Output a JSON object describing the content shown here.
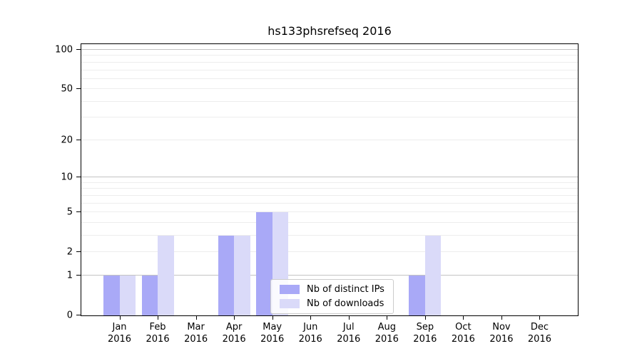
{
  "chart_data": {
    "type": "bar",
    "title": "hs133phsrefseq 2016",
    "x_year": "2016",
    "categories": [
      "Jan",
      "Feb",
      "Mar",
      "Apr",
      "May",
      "Jun",
      "Jul",
      "Aug",
      "Sep",
      "Oct",
      "Nov",
      "Dec"
    ],
    "series": [
      {
        "name": "Nb of distinct IPs",
        "color": "#a9a9f7",
        "values": [
          1,
          1,
          0,
          3,
          5,
          0,
          0,
          0,
          1,
          0,
          0,
          0
        ]
      },
      {
        "name": "Nb of downloads",
        "color": "#dadaf9",
        "values": [
          1,
          3,
          0,
          3,
          5,
          0,
          0,
          0,
          3,
          0,
          0,
          0
        ]
      }
    ],
    "y_axis": {
      "scale": "log10(value+1)",
      "tick_values": [
        100,
        50,
        20,
        10,
        5,
        2,
        1,
        0
      ],
      "major_gridlines": [
        1,
        10,
        100
      ],
      "minor_gridlines": [
        2,
        3,
        4,
        5,
        6,
        7,
        8,
        9,
        20,
        30,
        40,
        50,
        60,
        70,
        80,
        90
      ],
      "range_top": 112
    },
    "legend": {
      "position": "lower center",
      "entries": [
        "Nb of distinct IPs",
        "Nb of downloads"
      ]
    },
    "grid": true
  },
  "colors": {
    "bar_distinct_ips": "#a9a9f7",
    "bar_downloads": "#dadaf9",
    "major_gridline": "#c3c3c3",
    "minor_gridline": "#ededed",
    "axis": "#000000",
    "legend_border": "#cccccc",
    "background": "#ffffff"
  }
}
